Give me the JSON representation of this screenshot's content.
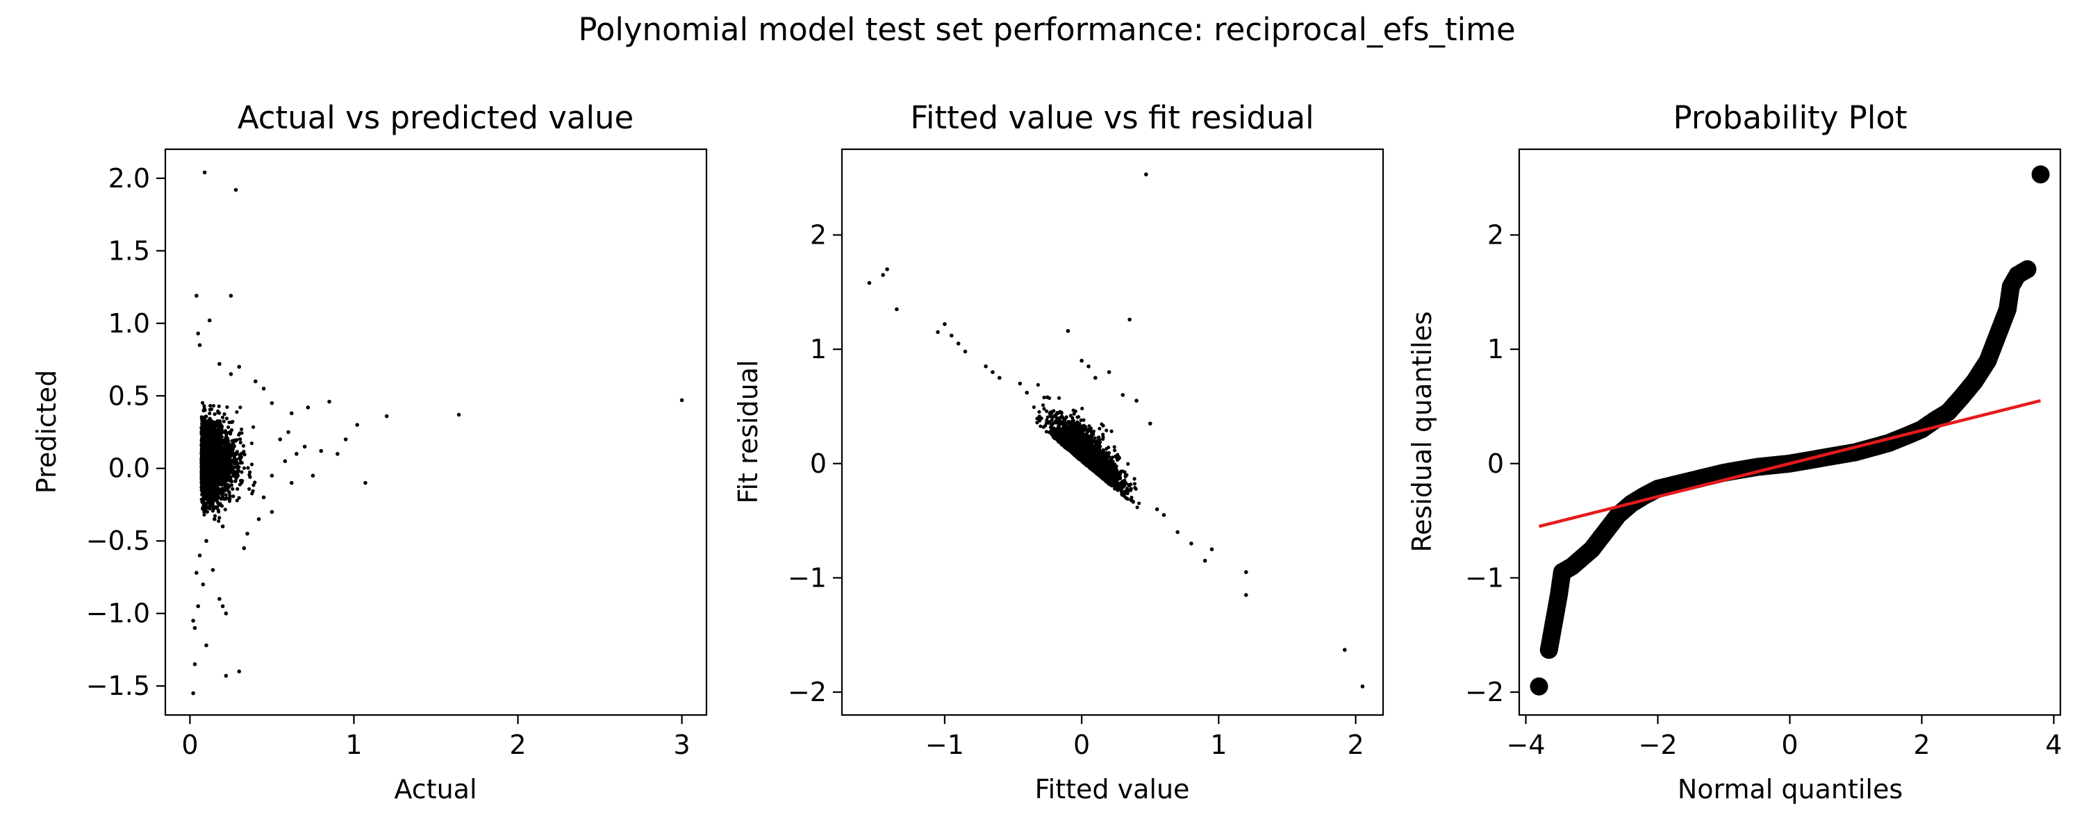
{
  "figure": {
    "suptitle": "Polynomial model test set performance: reciprocal_efs_time"
  },
  "chart_data": [
    {
      "type": "scatter",
      "title": "Actual vs predicted value",
      "xlabel": "Actual",
      "ylabel": "Predicted",
      "xlim": [
        -0.15,
        3.15
      ],
      "ylim": [
        -1.7,
        2.2
      ],
      "xticks": [
        {
          "v": 0,
          "label": "0"
        },
        {
          "v": 1,
          "label": "1"
        },
        {
          "v": 2,
          "label": "2"
        },
        {
          "v": 3,
          "label": "3"
        }
      ],
      "yticks": [
        {
          "v": -1.5,
          "label": "−1.5"
        },
        {
          "v": -1.0,
          "label": "−1.0"
        },
        {
          "v": -0.5,
          "label": "−0.5"
        },
        {
          "v": 0.0,
          "label": "0.0"
        },
        {
          "v": 0.5,
          "label": "0.5"
        },
        {
          "v": 1.0,
          "label": "1.0"
        },
        {
          "v": 1.5,
          "label": "1.5"
        },
        {
          "v": 2.0,
          "label": "2.0"
        }
      ],
      "grid": false,
      "marker_color": "#000000",
      "points": [
        [
          0.09,
          2.04
        ],
        [
          0.28,
          1.92
        ],
        [
          0.04,
          1.19
        ],
        [
          0.25,
          1.19
        ],
        [
          0.12,
          1.02
        ],
        [
          0.05,
          0.93
        ],
        [
          0.06,
          0.85
        ],
        [
          0.18,
          0.72
        ],
        [
          0.3,
          0.7
        ],
        [
          0.25,
          0.65
        ],
        [
          0.4,
          0.6
        ],
        [
          0.45,
          0.55
        ],
        [
          0.5,
          0.45
        ],
        [
          0.62,
          0.38
        ],
        [
          0.72,
          0.42
        ],
        [
          0.85,
          0.46
        ],
        [
          1.02,
          0.3
        ],
        [
          1.2,
          0.36
        ],
        [
          1.64,
          0.37
        ],
        [
          3.0,
          0.47
        ],
        [
          0.55,
          0.2
        ],
        [
          0.6,
          0.25
        ],
        [
          0.65,
          0.1
        ],
        [
          0.7,
          0.15
        ],
        [
          0.8,
          0.12
        ],
        [
          0.9,
          0.1
        ],
        [
          0.95,
          0.2
        ],
        [
          0.58,
          0.05
        ],
        [
          0.5,
          -0.05
        ],
        [
          0.62,
          -0.1
        ],
        [
          0.75,
          -0.05
        ],
        [
          1.07,
          -0.1
        ],
        [
          0.45,
          -0.2
        ],
        [
          0.5,
          -0.3
        ],
        [
          0.42,
          -0.35
        ],
        [
          0.33,
          -0.55
        ],
        [
          0.35,
          -0.45
        ],
        [
          0.15,
          -0.35
        ],
        [
          0.2,
          -0.4
        ],
        [
          0.1,
          -0.5
        ],
        [
          0.06,
          -0.6
        ],
        [
          0.04,
          -0.72
        ],
        [
          0.08,
          -0.8
        ],
        [
          0.14,
          -0.7
        ],
        [
          0.05,
          -0.95
        ],
        [
          0.02,
          -1.05
        ],
        [
          0.03,
          -1.1
        ],
        [
          0.2,
          -0.95
        ],
        [
          0.22,
          -1.0
        ],
        [
          0.18,
          -0.9
        ],
        [
          0.03,
          -1.35
        ],
        [
          0.02,
          -1.55
        ],
        [
          0.22,
          -1.43
        ],
        [
          0.3,
          -1.4
        ],
        [
          0.1,
          -1.22
        ]
      ],
      "cloud": {
        "x_center": 0.12,
        "x_spread": 0.1,
        "y_center": 0.05,
        "y_spread": 0.13,
        "count": 2600
      }
    },
    {
      "type": "scatter",
      "title": "Fitted value vs fit residual",
      "xlabel": "Fitted value",
      "ylabel": "Fit residual",
      "xlim": [
        -1.75,
        2.2
      ],
      "ylim": [
        -2.2,
        2.75
      ],
      "xticks": [
        {
          "v": -1,
          "label": "−1"
        },
        {
          "v": 0,
          "label": "0"
        },
        {
          "v": 1,
          "label": "1"
        },
        {
          "v": 2,
          "label": "2"
        }
      ],
      "yticks": [
        {
          "v": -2,
          "label": "−2"
        },
        {
          "v": -1,
          "label": "−1"
        },
        {
          "v": 0,
          "label": "0"
        },
        {
          "v": 1,
          "label": "1"
        },
        {
          "v": 2,
          "label": "2"
        }
      ],
      "grid": false,
      "marker_color": "#000000",
      "points": [
        [
          0.47,
          2.53
        ],
        [
          -1.55,
          1.58
        ],
        [
          -1.45,
          1.65
        ],
        [
          -1.42,
          1.7
        ],
        [
          -1.35,
          1.35
        ],
        [
          -1.05,
          1.15
        ],
        [
          -1.0,
          1.22
        ],
        [
          -0.95,
          1.12
        ],
        [
          -0.9,
          1.05
        ],
        [
          -0.85,
          0.98
        ],
        [
          -0.7,
          0.85
        ],
        [
          -0.65,
          0.8
        ],
        [
          -0.6,
          0.75
        ],
        [
          -0.45,
          0.7
        ],
        [
          -0.4,
          0.62
        ],
        [
          -0.25,
          0.58
        ],
        [
          -0.1,
          1.16
        ],
        [
          0.35,
          1.26
        ],
        [
          0.0,
          0.9
        ],
        [
          0.05,
          0.85
        ],
        [
          0.2,
          0.8
        ],
        [
          0.1,
          0.75
        ],
        [
          0.3,
          0.6
        ],
        [
          0.4,
          0.55
        ],
        [
          0.5,
          0.35
        ],
        [
          0.55,
          -0.4
        ],
        [
          0.6,
          -0.45
        ],
        [
          0.7,
          -0.6
        ],
        [
          0.8,
          -0.7
        ],
        [
          0.9,
          -0.85
        ],
        [
          0.95,
          -0.75
        ],
        [
          1.2,
          -0.95
        ],
        [
          1.2,
          -1.15
        ],
        [
          1.92,
          -1.63
        ],
        [
          2.05,
          -1.95
        ]
      ],
      "cloud": {
        "model": "diagonal",
        "x_center": 0.05,
        "x_spread": 0.12,
        "excess_scale": 0.13,
        "count": 2600
      }
    },
    {
      "type": "scatter",
      "title": "Probability Plot",
      "xlabel": "Normal quantiles",
      "ylabel": "Residual quantiles",
      "xlim": [
        -4.1,
        4.1
      ],
      "ylim": [
        -2.2,
        2.75
      ],
      "xticks": [
        {
          "v": -4,
          "label": "−4"
        },
        {
          "v": -2,
          "label": "−2"
        },
        {
          "v": 0,
          "label": "0"
        },
        {
          "v": 2,
          "label": "2"
        },
        {
          "v": 4,
          "label": "4"
        }
      ],
      "yticks": [
        {
          "v": -2,
          "label": "−2"
        },
        {
          "v": -1,
          "label": "−1"
        },
        {
          "v": 0,
          "label": "0"
        },
        {
          "v": 1,
          "label": "1"
        },
        {
          "v": 2,
          "label": "2"
        }
      ],
      "grid": false,
      "marker_color": "#000000",
      "line_color": "#e41a1c",
      "fit_line": [
        [
          -3.8,
          -0.55
        ],
        [
          3.8,
          0.55
        ]
      ],
      "qq_curve": [
        [
          -3.8,
          -1.95
        ],
        [
          -3.65,
          -1.63
        ],
        [
          -3.5,
          -1.15
        ],
        [
          -3.45,
          -0.95
        ],
        [
          -3.3,
          -0.9
        ],
        [
          -3.0,
          -0.75
        ],
        [
          -2.8,
          -0.6
        ],
        [
          -2.6,
          -0.45
        ],
        [
          -2.4,
          -0.35
        ],
        [
          -2.2,
          -0.28
        ],
        [
          -2.0,
          -0.22
        ],
        [
          -1.5,
          -0.15
        ],
        [
          -1.0,
          -0.08
        ],
        [
          -0.5,
          -0.03
        ],
        [
          0.0,
          0.0
        ],
        [
          0.5,
          0.05
        ],
        [
          1.0,
          0.1
        ],
        [
          1.5,
          0.18
        ],
        [
          1.8,
          0.25
        ],
        [
          2.0,
          0.3
        ],
        [
          2.2,
          0.38
        ],
        [
          2.4,
          0.45
        ],
        [
          2.6,
          0.58
        ],
        [
          2.8,
          0.72
        ],
        [
          3.0,
          0.9
        ],
        [
          3.1,
          1.05
        ],
        [
          3.2,
          1.2
        ],
        [
          3.3,
          1.35
        ],
        [
          3.35,
          1.55
        ],
        [
          3.45,
          1.65
        ],
        [
          3.6,
          1.7
        ],
        [
          3.8,
          2.53
        ]
      ]
    }
  ]
}
